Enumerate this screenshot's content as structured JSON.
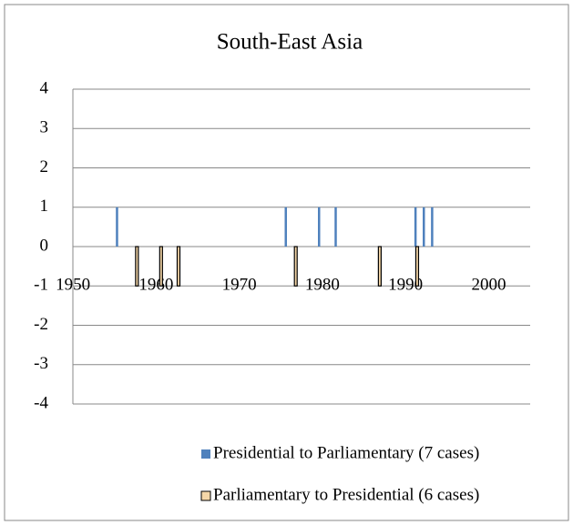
{
  "chart_data": {
    "type": "bar",
    "title": "South-East Asia",
    "xlim": [
      1947.8,
      2002.8
    ],
    "xticks": [
      1950,
      1960,
      1970,
      1980,
      1990,
      2000
    ],
    "ylim": [
      -4,
      4
    ],
    "yticks": [
      -4,
      -3,
      -2,
      -1,
      0,
      1,
      2,
      3,
      4
    ],
    "grid": true,
    "series": [
      {
        "name": "Presidential to Parliamentary (7 cases)",
        "color": "#4f81bd",
        "x": [
          1955.3,
          1975.6,
          1979.6,
          1981.6,
          1991.2,
          1992.2,
          1993.2
        ],
        "values": [
          1,
          1,
          1,
          1,
          1,
          1,
          1
        ]
      },
      {
        "name": "Parliamentary to Presidential (6 cases)",
        "color": "#f5d7a8",
        "edgecolor": "#000000",
        "x": [
          1957.7,
          1960.6,
          1962.7,
          1976.8,
          1986.9,
          1991.4
        ],
        "values": [
          -1,
          -1,
          -1,
          -1,
          -1,
          -1
        ]
      }
    ]
  }
}
